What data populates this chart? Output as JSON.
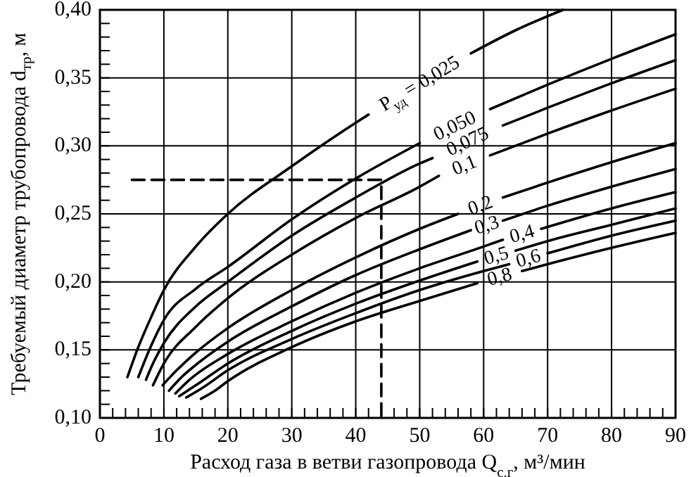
{
  "chart_data": {
    "type": "line",
    "xlabel": "Расход газа в ветви газопровода Q$_{с.г}$, м³/мин",
    "ylabel": "Требуемый диаметр трубопровода d$_{тр}$, м",
    "xlim": [
      0,
      90
    ],
    "ylim": [
      0.1,
      0.4
    ],
    "xticks": [
      0,
      {
        "value": 2,
        "label": null
      },
      {
        "value": 4,
        "label": null
      },
      {
        "value": 6,
        "label": null
      },
      {
        "value": 8,
        "label": null
      },
      10,
      {
        "value": 12,
        "label": null
      },
      {
        "value": 14,
        "label": null
      },
      {
        "value": 16,
        "label": null
      },
      {
        "value": 18,
        "label": null
      },
      20,
      {
        "value": 22,
        "label": null
      },
      {
        "value": 24,
        "label": null
      },
      {
        "value": 26,
        "label": null
      },
      {
        "value": 28,
        "label": null
      },
      30,
      {
        "value": 32,
        "label": null
      },
      {
        "value": 34,
        "label": null
      },
      {
        "value": 36,
        "label": null
      },
      {
        "value": 38,
        "label": null
      },
      40,
      {
        "value": 42,
        "label": null
      },
      {
        "value": 44,
        "label": null
      },
      {
        "value": 46,
        "label": null
      },
      {
        "value": 48,
        "label": null
      },
      50,
      {
        "value": 52,
        "label": null
      },
      {
        "value": 54,
        "label": null
      },
      {
        "value": 56,
        "label": null
      },
      {
        "value": 58,
        "label": null
      },
      60,
      {
        "value": 62,
        "label": null
      },
      {
        "value": 64,
        "label": null
      },
      {
        "value": 66,
        "label": null
      },
      {
        "value": 68,
        "label": null
      },
      70,
      {
        "value": 72,
        "label": null
      },
      {
        "value": 74,
        "label": null
      },
      {
        "value": 76,
        "label": null
      },
      {
        "value": 78,
        "label": null
      },
      80,
      {
        "value": 82,
        "label": null
      },
      {
        "value": 84,
        "label": null
      },
      {
        "value": 86,
        "label": null
      },
      {
        "value": 88,
        "label": null
      },
      90
    ],
    "yticks": [
      {
        "value": 0.1,
        "label": "0,10"
      },
      {
        "value": 0.11,
        "label": null
      },
      {
        "value": 0.12,
        "label": null
      },
      {
        "value": 0.13,
        "label": null
      },
      {
        "value": 0.14,
        "label": null
      },
      {
        "value": 0.15,
        "label": "0,15"
      },
      {
        "value": 0.16,
        "label": null
      },
      {
        "value": 0.17,
        "label": null
      },
      {
        "value": 0.18,
        "label": null
      },
      {
        "value": 0.19,
        "label": null
      },
      {
        "value": 0.2,
        "label": "0,20"
      },
      {
        "value": 0.21,
        "label": null
      },
      {
        "value": 0.22,
        "label": null
      },
      {
        "value": 0.23,
        "label": null
      },
      {
        "value": 0.24,
        "label": null
      },
      {
        "value": 0.25,
        "label": "0,25"
      },
      {
        "value": 0.26,
        "label": null
      },
      {
        "value": 0.27,
        "label": null
      },
      {
        "value": 0.28,
        "label": null
      },
      {
        "value": 0.29,
        "label": null
      },
      {
        "value": 0.3,
        "label": "0,30"
      },
      {
        "value": 0.31,
        "label": null
      },
      {
        "value": 0.32,
        "label": null
      },
      {
        "value": 0.33,
        "label": null
      },
      {
        "value": 0.34,
        "label": null
      },
      {
        "value": 0.35,
        "label": "0,35"
      },
      {
        "value": 0.36,
        "label": null
      },
      {
        "value": 0.37,
        "label": null
      },
      {
        "value": 0.38,
        "label": null
      },
      {
        "value": 0.39,
        "label": null
      },
      {
        "value": 0.4,
        "label": "0,40"
      }
    ],
    "grid": true,
    "series": [
      {
        "name": "P$_{уд}$ = 0,025",
        "color": "#000000",
        "x": [
          4.3,
          6,
          8,
          10,
          15,
          20,
          30,
          40,
          42,
          50,
          58,
          65,
          72.4
        ],
        "values": [
          0.13,
          0.152,
          0.174,
          0.194,
          0.226,
          0.25,
          0.285,
          0.317,
          0.323,
          null,
          0.368,
          0.385,
          0.4
        ]
      },
      {
        "name": "0,050",
        "color": "#000000",
        "x": [
          6,
          8,
          10,
          15,
          20,
          30,
          40,
          50,
          55,
          61,
          70,
          80,
          90
        ],
        "values": [
          0.13,
          0.153,
          0.172,
          0.195,
          0.211,
          0.246,
          0.276,
          0.302,
          null,
          0.327,
          0.345,
          0.364,
          0.382
        ]
      },
      {
        "name": "0,075",
        "color": "#000000",
        "x": [
          7.2,
          8,
          10,
          15,
          20,
          30,
          40,
          50,
          52,
          57,
          63,
          70,
          80,
          90
        ],
        "values": [
          0.128,
          0.137,
          0.155,
          0.182,
          0.2,
          0.234,
          0.262,
          0.287,
          0.291,
          null,
          0.315,
          0.328,
          0.346,
          0.363
        ]
      },
      {
        "name": "0,1",
        "color": "#000000",
        "x": [
          8.3,
          10,
          15,
          20,
          30,
          40,
          50,
          53,
          57,
          61,
          70,
          80,
          90
        ],
        "values": [
          0.124,
          0.14,
          0.167,
          0.188,
          0.22,
          0.247,
          0.27,
          0.278,
          null,
          0.293,
          0.309,
          0.326,
          0.342
        ]
      },
      {
        "name": "0,2",
        "color": "#000000",
        "x": [
          9.8,
          12,
          15,
          20,
          30,
          40,
          50,
          56,
          59,
          63,
          70,
          80,
          90
        ],
        "values": [
          0.124,
          0.135,
          0.148,
          0.166,
          0.194,
          0.218,
          0.239,
          0.25,
          null,
          0.262,
          0.273,
          0.288,
          0.302
        ]
      },
      {
        "name": "0,3",
        "color": "#000000",
        "x": [
          10.8,
          13,
          15,
          20,
          30,
          40,
          50,
          58,
          60.5,
          63,
          70,
          80,
          90
        ],
        "values": [
          0.12,
          0.131,
          0.139,
          0.156,
          0.182,
          0.205,
          0.224,
          0.238,
          null,
          0.245,
          0.256,
          0.27,
          0.283
        ]
      },
      {
        "name": "0,4",
        "color": "#000000",
        "x": [
          11.8,
          14,
          20,
          30,
          40,
          50,
          60,
          63,
          66,
          69,
          80,
          90
        ],
        "values": [
          0.118,
          0.128,
          0.147,
          0.171,
          0.192,
          0.21,
          0.226,
          0.231,
          null,
          0.239,
          0.254,
          0.266
        ]
      },
      {
        "name": "0,5",
        "color": "#000000",
        "x": [
          12.4,
          15,
          20,
          30,
          40,
          50,
          59,
          62,
          65,
          70,
          80,
          90
        ],
        "values": [
          0.116,
          0.124,
          0.14,
          0.164,
          0.184,
          0.201,
          0.215,
          null,
          0.223,
          0.23,
          0.242,
          0.254
        ]
      },
      {
        "name": "0,6",
        "color": "#000000",
        "x": [
          13.5,
          16,
          20,
          30,
          40,
          50,
          60,
          64,
          67,
          70,
          80,
          90
        ],
        "values": [
          0.115,
          0.122,
          0.135,
          0.158,
          0.177,
          0.194,
          0.208,
          0.213,
          null,
          0.221,
          0.234,
          0.245
        ]
      },
      {
        "name": "0,8",
        "color": "#000000",
        "x": [
          15.8,
          18,
          20,
          30,
          40,
          50,
          59,
          62,
          66,
          70,
          80,
          90
        ],
        "values": [
          0.114,
          0.12,
          0.127,
          0.152,
          0.171,
          0.186,
          0.199,
          null,
          0.208,
          0.213,
          0.225,
          0.236
        ]
      },
      {
        "color": "#000000",
        "line_style": "dashed",
        "x": [
          5,
          44,
          44
        ],
        "values": [
          0.275,
          0.275,
          0.1
        ]
      }
    ]
  }
}
